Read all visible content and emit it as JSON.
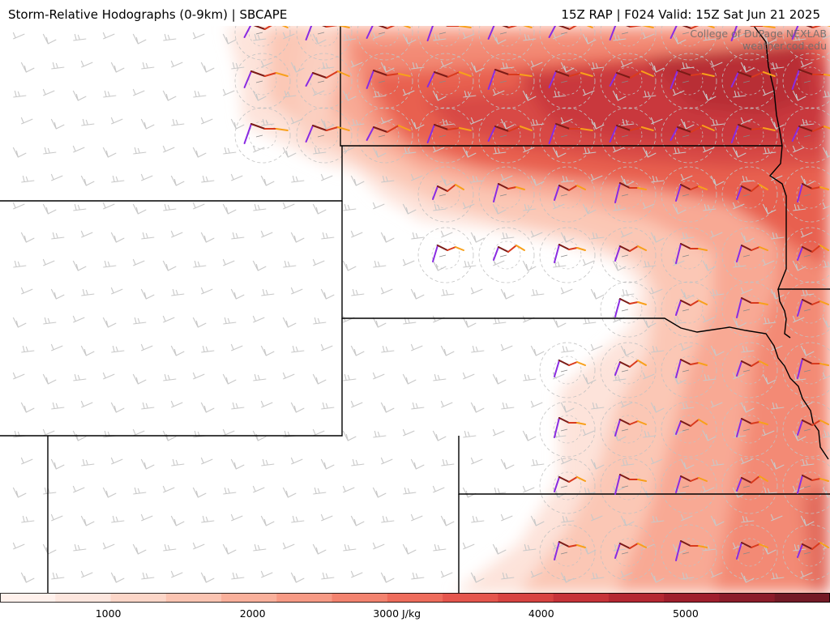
{
  "header": {
    "title_left": "Storm-Relative Hodographs (0-9km) | SBCAPE",
    "title_right": "15Z RAP | F024 Valid: 15Z Sat Jun 21 2025"
  },
  "credit": {
    "line1": "College of DuPage NEXLAB",
    "line2": "weather.cod.edu"
  },
  "colorbar": {
    "unit": "J/kg",
    "ticks": [
      {
        "value": 1000,
        "label": "1000"
      },
      {
        "value": 2000,
        "label": "2000"
      },
      {
        "value": 3000,
        "label": "3000 J/kg"
      },
      {
        "value": 4000,
        "label": "4000"
      },
      {
        "value": 5000,
        "label": "5000"
      }
    ],
    "min": 250,
    "max": 6000,
    "colors": [
      "#fff1ec",
      "#fde6de",
      "#fcd6c8",
      "#fbc4b2",
      "#f9b09b",
      "#f79a85",
      "#f3836f",
      "#ee6c5c",
      "#e5564d",
      "#d84341",
      "#c73339",
      "#b52832",
      "#a01f2d",
      "#8c1c2a",
      "#741a26"
    ]
  },
  "map_style": {
    "border_color": "#000000",
    "barb_color": "#c8c8c8",
    "ring_color": "#c2c2c2",
    "hodograph_colors": [
      "#7b1b16",
      "#d93a1e",
      "#f8a01a",
      "#8a2be2"
    ]
  }
}
